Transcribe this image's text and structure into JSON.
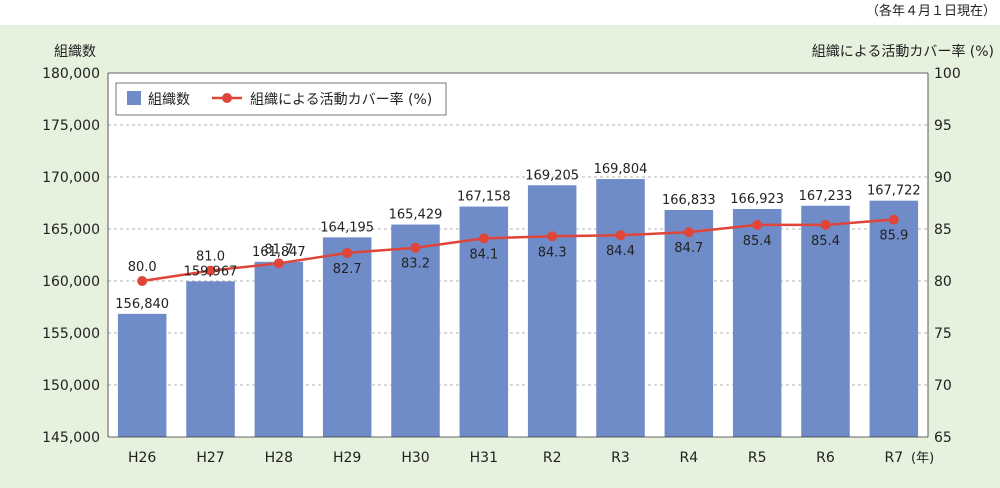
{
  "note": "（各年４月１日現在）",
  "left_axis_title": "組織数",
  "right_axis_title": "組織による活動カバー率 (%)",
  "year_unit": "(年)",
  "colors": {
    "panel_bg": "#e6f1de",
    "bar": "#6f8cc8",
    "line": "#e0453a",
    "grid": "#9a9a9a"
  },
  "chart_data": {
    "type": "bar",
    "categories": [
      "H26",
      "H27",
      "H28",
      "H29",
      "H30",
      "H31",
      "R2",
      "R3",
      "R4",
      "R5",
      "R6",
      "R7"
    ],
    "series": [
      {
        "name": "組織数",
        "type": "bar",
        "axis": "left",
        "values": [
          156840,
          159967,
          161847,
          164195,
          165429,
          167158,
          169205,
          169804,
          166833,
          166923,
          167233,
          167722
        ],
        "labels": [
          "156,840",
          "159,967",
          "161,847",
          "164,195",
          "165,429",
          "167,158",
          "169,205",
          "169,804",
          "166,833",
          "166,923",
          "167,233",
          "167,722"
        ]
      },
      {
        "name": "組織による活動カバー率 (%)",
        "type": "line",
        "axis": "right",
        "values": [
          80.0,
          81.0,
          81.7,
          82.7,
          83.2,
          84.1,
          84.3,
          84.4,
          84.7,
          85.4,
          85.4,
          85.9
        ],
        "labels": [
          "80.0",
          "81.0",
          "81.7",
          "82.7",
          "83.2",
          "84.1",
          "84.3",
          "84.4",
          "84.7",
          "85.4",
          "85.4",
          "85.9"
        ]
      }
    ],
    "y_left": {
      "min": 145000,
      "max": 180000,
      "step": 5000,
      "ticks": [
        "145,000",
        "150,000",
        "155,000",
        "160,000",
        "165,000",
        "170,000",
        "175,000",
        "180,000"
      ]
    },
    "y_right": {
      "min": 65,
      "max": 100,
      "step": 5,
      "ticks": [
        "65",
        "70",
        "75",
        "80",
        "85",
        "90",
        "95",
        "100"
      ]
    },
    "grid": true,
    "legend_position": "top-left"
  }
}
